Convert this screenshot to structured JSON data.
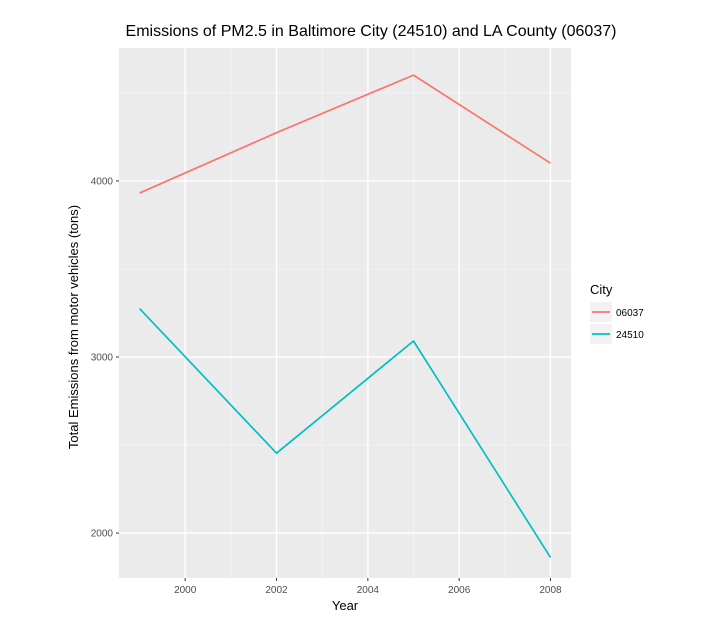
{
  "chart_data": {
    "type": "line",
    "title": "Emissions of PM2.5 in Baltimore City (24510) and LA County (06037)",
    "xlabel": "Year",
    "ylabel": "Total Emissions from motor vehicles (tons)",
    "x": [
      1999,
      2002,
      2005,
      2008
    ],
    "xlim": [
      1998.55,
      2008.45
    ],
    "ylim": [
      1745,
      4755
    ],
    "x_ticks": [
      2000,
      2002,
      2004,
      2006,
      2008
    ],
    "x_tick_labels": [
      "2000",
      "2002",
      "2004",
      "2006",
      "2008"
    ],
    "y_ticks": [
      2000,
      3000,
      4000
    ],
    "y_tick_labels": [
      "2000",
      "3000",
      "4000"
    ],
    "grid": true,
    "legend": {
      "title": "City",
      "position": "right"
    },
    "series": [
      {
        "name": "06037",
        "color": "#f8766d",
        "values": [
          3931,
          4274,
          4601,
          4101
        ]
      },
      {
        "name": "24510",
        "color": "#00bfc4",
        "values": [
          3275,
          2454,
          3091,
          1862
        ]
      }
    ],
    "panel_background": "#ebebeb"
  }
}
